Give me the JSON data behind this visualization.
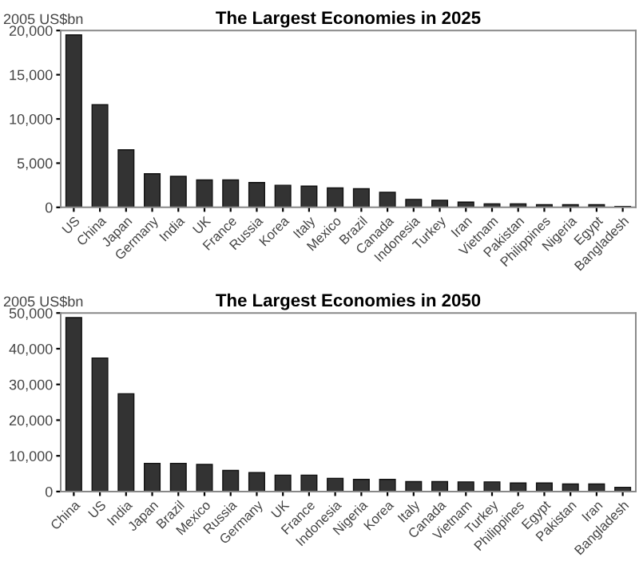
{
  "chart_data": [
    {
      "type": "bar",
      "title": "The Largest Economies in 2025",
      "ylabel": "2005 US$bn",
      "categories": [
        "US",
        "China",
        "Japan",
        "Germany",
        "India",
        "UK",
        "France",
        "Russia",
        "Korea",
        "Italy",
        "Mexico",
        "Brazil",
        "Canada",
        "Indonesia",
        "Turkey",
        "Iran",
        "Vietnam",
        "Pakistan",
        "Philippines",
        "Nigeria",
        "Egypt",
        "Bangladesh"
      ],
      "series": [
        {
          "color": "#333333",
          "values": [
            19500,
            11600,
            6500,
            3800,
            3500,
            3100,
            3100,
            2800,
            2500,
            2400,
            2200,
            2100,
            1700,
            900,
            800,
            600,
            400,
            400,
            300,
            300,
            300,
            100
          ]
        }
      ],
      "ylim": [
        0,
        20000
      ],
      "yticks": [
        0,
        {
          "value": 5000,
          "label": "5,000"
        },
        {
          "value": 10000,
          "label": "10,000"
        },
        {
          "value": 15000,
          "label": "15,000"
        },
        {
          "value": 20000,
          "label": "20,000"
        }
      ],
      "grid": false,
      "legend": false
    },
    {
      "type": "bar",
      "title": "The Largest Economies in 2050",
      "ylabel": "2005 US$bn",
      "categories": [
        "China",
        "US",
        "India",
        "Japan",
        "Brazil",
        "Mexico",
        "Russia",
        "Germany",
        "UK",
        "France",
        "Indonesia",
        "Nigeria",
        "Korea",
        "Italy",
        "Canada",
        "Vietnam",
        "Turkey",
        "Philippines",
        "Egypt",
        "Pakistan",
        "Iran",
        "Bangladesh"
      ],
      "series": [
        {
          "color": "#333333",
          "values": [
            48700,
            37400,
            27400,
            7900,
            7900,
            7600,
            5900,
            5300,
            4600,
            4600,
            3700,
            3400,
            3400,
            2800,
            2800,
            2700,
            2700,
            2400,
            2400,
            2100,
            2100,
            1200
          ]
        }
      ],
      "ylim": [
        0,
        50000
      ],
      "yticks": [
        0,
        {
          "value": 10000,
          "label": "10,000"
        },
        {
          "value": 20000,
          "label": "20,000"
        },
        {
          "value": 30000,
          "label": "30,000"
        },
        {
          "value": 40000,
          "label": "40,000"
        },
        {
          "value": 50000,
          "label": "50,000"
        }
      ],
      "grid": false,
      "legend": false
    }
  ]
}
